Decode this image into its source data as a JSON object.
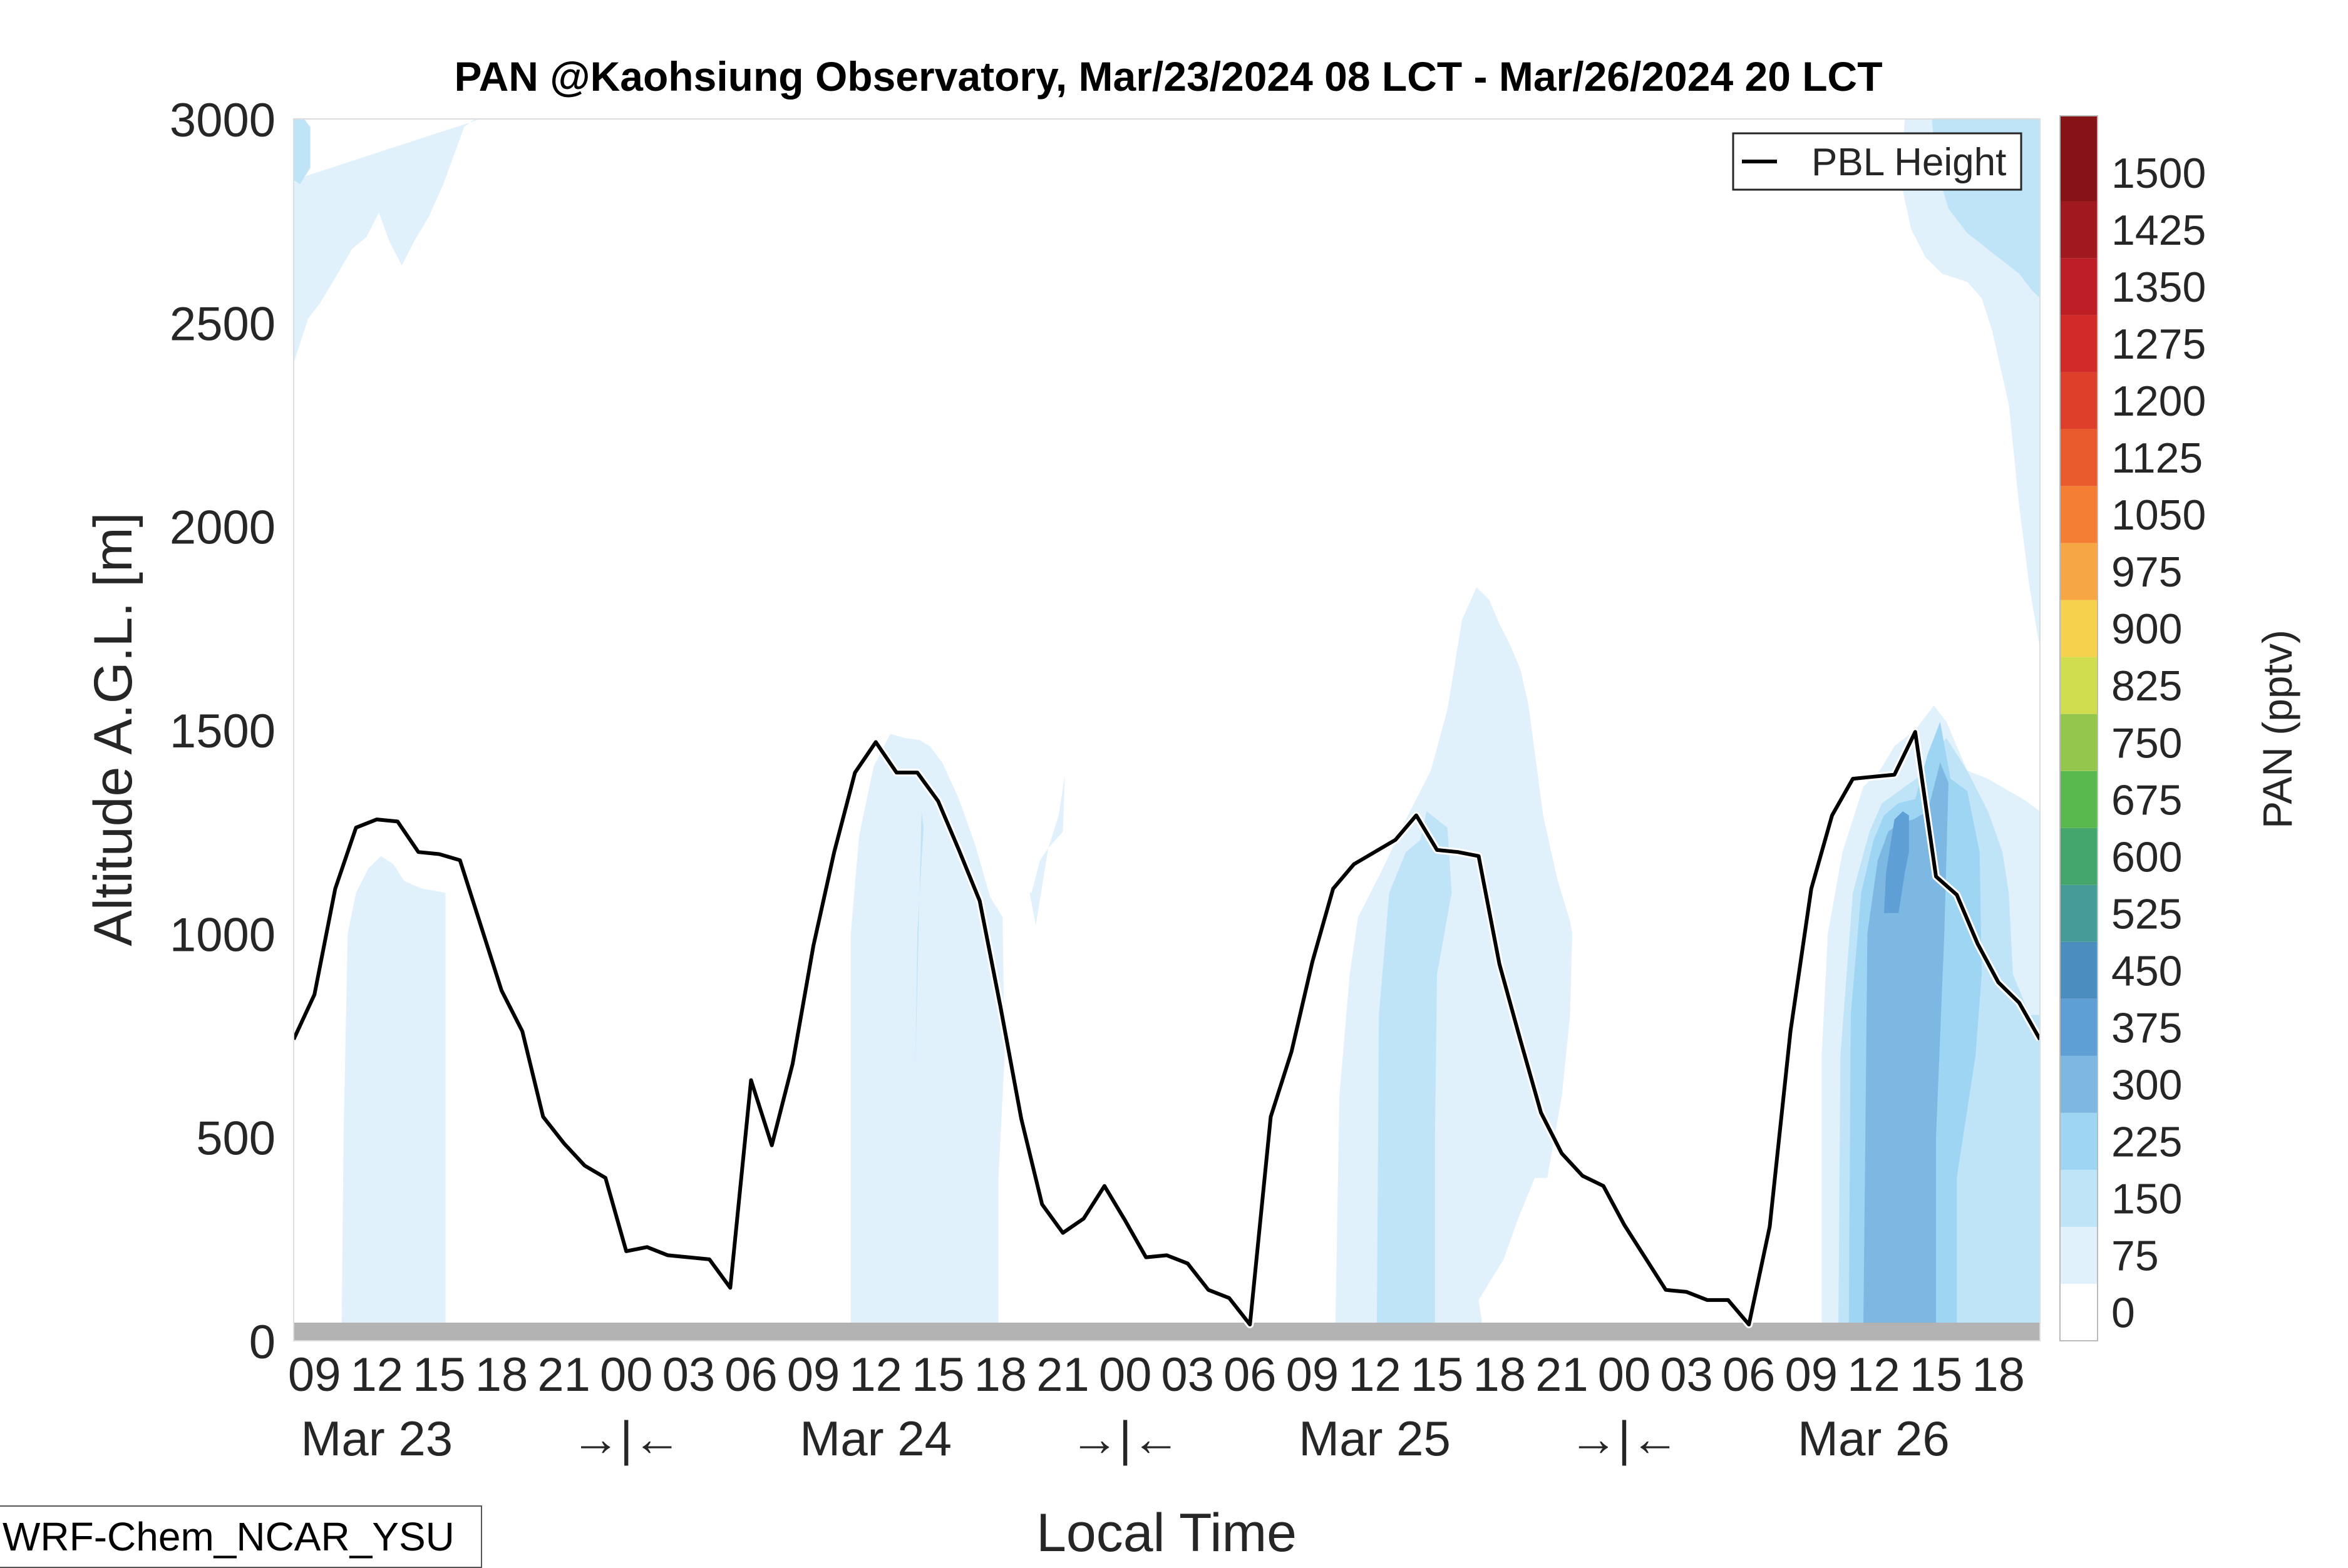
{
  "title": "PAN @Kaohsiung Observatory, Mar/23/2024 08 LCT - Mar/26/2024 20 LCT",
  "model_label": "WRF-Chem_NCAR_YSU",
  "chart_data": {
    "type": "contour-time-height",
    "xlabel": "Local Time",
    "ylabel": "Altitude A.G.L. [m]",
    "ylim": [
      0,
      3000
    ],
    "yticks": [
      0,
      500,
      1000,
      1500,
      2000,
      2500,
      3000
    ],
    "xlim_hours": [
      0,
      84
    ],
    "x_hour_labels": [
      "09",
      "12",
      "15",
      "18",
      "21",
      "00",
      "03",
      "06",
      "09",
      "12",
      "15",
      "18",
      "21",
      "00",
      "03",
      "06",
      "09",
      "12",
      "15",
      "18",
      "21",
      "00",
      "03",
      "06",
      "09",
      "12",
      "15",
      "18"
    ],
    "x_hour_offsets": [
      1,
      4,
      7,
      10,
      13,
      16,
      19,
      22,
      25,
      28,
      31,
      34,
      37,
      40,
      43,
      46,
      49,
      52,
      55,
      58,
      61,
      64,
      67,
      70,
      73,
      76,
      79,
      82
    ],
    "day_labels": [
      {
        "text": "Mar 23",
        "offset": 4
      },
      {
        "text": "→|←",
        "offset": 16
      },
      {
        "text": "Mar 24",
        "offset": 28
      },
      {
        "text": "→|←",
        "offset": 40
      },
      {
        "text": "Mar 25",
        "offset": 52
      },
      {
        "text": "→|←",
        "offset": 64
      },
      {
        "text": "Mar 26",
        "offset": 76
      }
    ],
    "legend": {
      "entries": [
        "PBL Height"
      ],
      "placement": "top-right"
    },
    "colorbar": {
      "label": "PAN (pptv)",
      "levels": [
        0,
        75,
        150,
        225,
        300,
        375,
        450,
        525,
        600,
        675,
        750,
        825,
        900,
        975,
        1050,
        1125,
        1200,
        1275,
        1350,
        1425,
        1500
      ],
      "colors": [
        "#ffffff",
        "#e0f1fb",
        "#bfe4f7",
        "#9dd5f2",
        "#7db8e2",
        "#5e9fd5",
        "#4a8ec0",
        "#469b96",
        "#45a66b",
        "#5ab94e",
        "#94c64b",
        "#cfdd4e",
        "#f5d14e",
        "#f7a644",
        "#f47f32",
        "#ea5b2b",
        "#de3f2b",
        "#d12a28",
        "#be1f26",
        "#a0191e",
        "#861416"
      ]
    },
    "pbl_series": {
      "name": "PBL Height",
      "color": "#000000",
      "x_hours": [
        0,
        1,
        2,
        3,
        4,
        5,
        6,
        7,
        8,
        9,
        10,
        11,
        12,
        13,
        14,
        15,
        16,
        17,
        18,
        19,
        20,
        21,
        22,
        23,
        24,
        25,
        26,
        27,
        28,
        29,
        30,
        31,
        32,
        33,
        34,
        35,
        36,
        37,
        38,
        39,
        40,
        41,
        42,
        43,
        44,
        45,
        46,
        47,
        48,
        49,
        50,
        51,
        52,
        53,
        54,
        55,
        56,
        57,
        58,
        59,
        60,
        61,
        62,
        63,
        64,
        65,
        66,
        67,
        68,
        69,
        70,
        71,
        72,
        73,
        74,
        75,
        76,
        77,
        78,
        79,
        80,
        81,
        82,
        83,
        84
      ],
      "y_m": [
        740,
        850,
        1110,
        1260,
        1280,
        1275,
        1200,
        1195,
        1180,
        1020,
        860,
        760,
        550,
        485,
        430,
        400,
        220,
        230,
        210,
        205,
        200,
        130,
        640,
        480,
        680,
        970,
        1200,
        1395,
        1470,
        1395,
        1395,
        1325,
        1205,
        1080,
        820,
        545,
        335,
        265,
        300,
        380,
        295,
        205,
        210,
        190,
        125,
        105,
        40,
        550,
        710,
        930,
        1110,
        1170,
        1200,
        1230,
        1290,
        1205,
        1200,
        1190,
        925,
        740,
        560,
        460,
        405,
        380,
        285,
        205,
        125,
        120,
        100,
        100,
        40,
        280,
        760,
        1110,
        1290,
        1380,
        1385,
        1390,
        1495,
        1140,
        1095,
        975,
        880,
        830,
        740
      ]
    },
    "contours": [
      {
        "level": 75,
        "regions": [
          {
            "x": [
              0,
              0,
              0.7,
              1.3,
              2.0,
              2.8,
              3.5,
              4.1,
              4.6,
              5.2,
              5.8,
              6.5,
              7.2,
              8.2,
              8.7,
              9.0,
              9.0
            ],
            "y": [
              2850,
              2400,
              2510,
              2550,
              2610,
              2680,
              2710,
              2770,
              2700,
              2640,
              2700,
              2760,
              2840,
              2980,
              3000,
              3000,
              3000
            ]
          },
          {
            "x": [
              2.3,
              2.4,
              2.6,
              3.0,
              3.6,
              4.2,
              4.8,
              5.3,
              5.7,
              6.2,
              7.3,
              7.3
            ],
            "y": [
              0,
              500,
              1000,
              1100,
              1160,
              1190,
              1170,
              1130,
              1120,
              1110,
              1100,
              0
            ]
          },
          {
            "x": [
              26.8,
              26.8,
              27.2,
              27.9,
              28.7,
              29.4,
              30.1,
              30.6,
              31.2,
              32.0,
              32.8,
              33.5,
              34.1,
              34.2,
              33.9,
              33.9,
              33.9
            ],
            "y": [
              0,
              1000,
              1240,
              1410,
              1490,
              1480,
              1475,
              1460,
              1420,
              1330,
              1215,
              1090,
              1040,
              700,
              400,
              0,
              0
            ]
          },
          {
            "x": [
              35.5,
              35.9,
              36.3,
              36.8,
              37.1,
              37.0,
              36.3,
              35.7,
              35.4
            ],
            "y": [
              1100,
              1180,
              1210,
              1290,
              1390,
              1250,
              1210,
              1020,
              1100
            ]
          },
          {
            "x": [
              50.1,
              50.3,
              50.8,
              51.2,
              52.3,
              53.6,
              54.5,
              54.7,
              55.5,
              56.2,
              56.9,
              57.5,
              58.0,
              58.5,
              59.0,
              59.4,
              60.1,
              60.8,
              61.4,
              61.5,
              61.4,
              61.0,
              60.3,
              59.7,
              58.9,
              58.2,
              57.0,
              57.3,
              57.3
            ],
            "y": [
              0,
              600,
              900,
              1040,
              1150,
              1290,
              1380,
              1400,
              1550,
              1770,
              1850,
              1820,
              1760,
              1710,
              1650,
              1560,
              1290,
              1130,
              1030,
              1000,
              800,
              600,
              400,
              400,
              300,
              200,
              100,
              0,
              0
            ]
          },
          {
            "x": [
              73.5,
              73.5,
              73.8,
              74.5,
              75.5,
              76.3,
              77.0,
              78.0,
              78.9,
              79.5,
              80.5,
              81.5,
              82.5,
              83.2,
              84.0,
              84.0
            ],
            "y": [
              0,
              700,
              1000,
              1200,
              1360,
              1400,
              1460,
              1500,
              1560,
              1520,
              1400,
              1380,
              1350,
              1330,
              1300,
              0
            ]
          },
          {
            "x": [
              77.5,
              77.3,
              77.8,
              78.5,
              79.3,
              80.5,
              81.2,
              81.7,
              82.5,
              83.0,
              83.5,
              84.0,
              84.0
            ],
            "y": [
              3000,
              2850,
              2730,
              2660,
              2620,
              2600,
              2560,
              2480,
              2300,
              2050,
              1850,
              1700,
              3000
            ]
          }
        ]
      },
      {
        "level": 150,
        "regions": [
          {
            "x": [
              0,
              0,
              0.5,
              0.8,
              0.8,
              0.3,
              0
            ],
            "y": [
              2850,
              3000,
              3000,
              2980,
              2880,
              2840,
              2850
            ]
          },
          {
            "x": [
              29.9,
              30.0,
              30.3,
              30.2,
              29.9
            ],
            "y": [
              660,
              1000,
              1260,
              1300,
              660
            ]
          },
          {
            "x": [
              52.1,
              52.2,
              52.7,
              53.5,
              54.2,
              54.5,
              55.5,
              55.7,
              55.0,
              54.9,
              54.9
            ],
            "y": [
              0,
              800,
              1100,
              1200,
              1230,
              1300,
              1260,
              1100,
              900,
              500,
              0
            ]
          },
          {
            "x": [
              74.3,
              74.4,
              75.0,
              75.8,
              76.4,
              77.5,
              78.3,
              79.0,
              79.5,
              80.5,
              81.5,
              82.2,
              82.5,
              82.7,
              83.5,
              84.0,
              84.0
            ],
            "y": [
              0,
              700,
              1100,
              1250,
              1320,
              1360,
              1390,
              1450,
              1480,
              1400,
              1300,
              1200,
              1100,
              900,
              800,
              800,
              0
            ]
          },
          {
            "x": [
              78.8,
              79.0,
              79.6,
              80.5,
              81.5,
              82.5,
              83.0,
              83.6,
              84.0,
              84.0
            ],
            "y": [
              3000,
              2880,
              2780,
              2720,
              2680,
              2640,
              2620,
              2580,
              2560,
              3000
            ]
          }
        ]
      },
      {
        "level": 225,
        "regions": [
          {
            "x": [
              74.8,
              74.9,
              75.4,
              76.0,
              76.5,
              77.2,
              78.0,
              78.6,
              79.2,
              79.7,
              80.5,
              81.1,
              81.2,
              80.9,
              80.0,
              80.0
            ],
            "y": [
              0,
              800,
              1100,
              1230,
              1290,
              1320,
              1330,
              1440,
              1520,
              1380,
              1350,
              1200,
              900,
              700,
              400,
              0
            ]
          }
        ]
      },
      {
        "level": 300,
        "regions": [
          {
            "x": [
              75.5,
              75.7,
              76.2,
              76.7,
              77.2,
              77.9,
              78.6,
              79.2,
              79.6,
              79.4,
              79.0,
              79.0
            ],
            "y": [
              0,
              1000,
              1180,
              1250,
              1270,
              1280,
              1300,
              1420,
              1370,
              1000,
              500,
              0
            ]
          }
        ]
      },
      {
        "level": 375,
        "regions": [
          {
            "x": [
              76.5,
              76.6,
              77.0,
              77.4,
              77.7,
              77.7,
              77.5,
              77.2,
              76.8
            ],
            "y": [
              1050,
              1150,
              1280,
              1300,
              1290,
              1200,
              1150,
              1050,
              1050
            ]
          }
        ]
      }
    ]
  }
}
